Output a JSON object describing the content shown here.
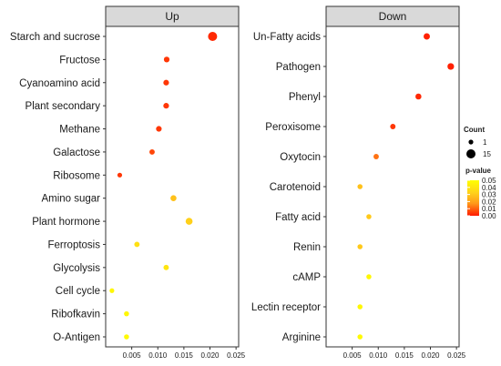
{
  "chart_data": [
    {
      "type": "scatter",
      "facet": "Up",
      "x_tick_labels": [
        "0.005",
        "0.010",
        "0.015",
        "0.020",
        "0.025"
      ],
      "xlim": [
        0.0,
        0.0255
      ],
      "points": [
        {
          "label": "Starch and sucrose",
          "x": 0.0205,
          "pvalue": 0.002,
          "count": 15
        },
        {
          "label": "Fructose",
          "x": 0.0117,
          "pvalue": 0.004,
          "count": 4
        },
        {
          "label": "Cyanoamino acid",
          "x": 0.0116,
          "pvalue": 0.004,
          "count": 4
        },
        {
          "label": "Plant secondary",
          "x": 0.0116,
          "pvalue": 0.004,
          "count": 4
        },
        {
          "label": "Methane",
          "x": 0.0102,
          "pvalue": 0.004,
          "count": 4
        },
        {
          "label": "Galactose",
          "x": 0.0089,
          "pvalue": 0.006,
          "count": 3
        },
        {
          "label": "Ribosome",
          "x": 0.0027,
          "pvalue": 0.004,
          "count": 1
        },
        {
          "label": "Amino sugar",
          "x": 0.013,
          "pvalue": 0.028,
          "count": 5
        },
        {
          "label": "Plant hormone",
          "x": 0.016,
          "pvalue": 0.032,
          "count": 8
        },
        {
          "label": "Ferroptosis",
          "x": 0.006,
          "pvalue": 0.038,
          "count": 3
        },
        {
          "label": "Glycolysis",
          "x": 0.0116,
          "pvalue": 0.04,
          "count": 3
        },
        {
          "label": "Cell cycle",
          "x": 0.0012,
          "pvalue": 0.047,
          "count": 1
        },
        {
          "label": "Ribofkavin",
          "x": 0.004,
          "pvalue": 0.047,
          "count": 2
        },
        {
          "label": "O-Antigen",
          "x": 0.004,
          "pvalue": 0.048,
          "count": 2
        }
      ]
    },
    {
      "type": "scatter",
      "facet": "Down",
      "x_tick_labels": [
        "0.005",
        "0.010",
        "0.015",
        "0.020",
        "0.025"
      ],
      "xlim": [
        0.0,
        0.0255
      ],
      "points": [
        {
          "label": "Un-Fatty acids",
          "x": 0.0193,
          "pvalue": 0.001,
          "count": 6
        },
        {
          "label": "Pathogen",
          "x": 0.0239,
          "pvalue": 0.001,
          "count": 7
        },
        {
          "label": "Phenyl",
          "x": 0.0177,
          "pvalue": 0.002,
          "count": 5
        },
        {
          "label": "Peroxisome",
          "x": 0.0128,
          "pvalue": 0.004,
          "count": 3
        },
        {
          "label": "Oxytocin",
          "x": 0.0096,
          "pvalue": 0.012,
          "count": 3
        },
        {
          "label": "Carotenoid",
          "x": 0.0065,
          "pvalue": 0.028,
          "count": 2
        },
        {
          "label": "Fatty acid",
          "x": 0.0082,
          "pvalue": 0.03,
          "count": 2
        },
        {
          "label": "Renin",
          "x": 0.0065,
          "pvalue": 0.03,
          "count": 2
        },
        {
          "label": "cAMP",
          "x": 0.0082,
          "pvalue": 0.047,
          "count": 2
        },
        {
          "label": "Lectin receptor",
          "x": 0.0065,
          "pvalue": 0.047,
          "count": 2
        },
        {
          "label": "Arginine",
          "x": 0.0065,
          "pvalue": 0.048,
          "count": 2
        }
      ]
    }
  ],
  "legend": {
    "count_title": "Count",
    "count_items": [
      {
        "label": "1",
        "count": 1
      },
      {
        "label": "15",
        "count": 15
      }
    ],
    "color_title": "p-value",
    "color_ticks": [
      "0.05",
      "0.04",
      "0.03",
      "0.02",
      "0.01",
      "0.00"
    ],
    "color_scale": [
      "#ffff00",
      "#ff0000"
    ]
  }
}
